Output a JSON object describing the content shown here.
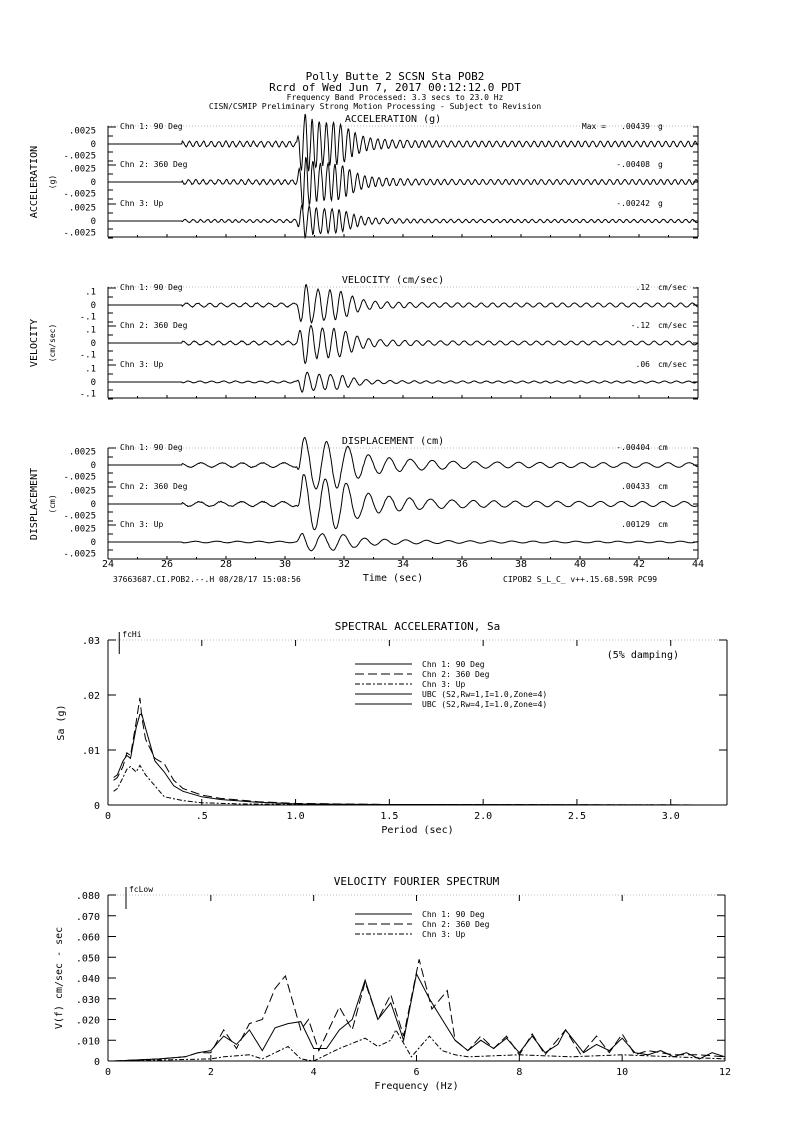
{
  "header": {
    "line1": "Polly Butte 2    SCSN Sta POB2",
    "line2": "Rcrd of Wed Jun  7, 2017 00:12:12.0 PDT",
    "line3": "Frequency Band Processed: 3.3 secs to 23.0 Hz",
    "line4": "CISN/CSMIP Preliminary Strong Motion Processing - Subject to Revision"
  },
  "footer": {
    "left": "37663687.CI.POB2.--.H 08/28/17 15:08:56",
    "right": "CIPOB2  S_L_C_  v++.15.68.59R PC99"
  },
  "chart_data": [
    {
      "type": "line",
      "title": "ACCELERATION (g)",
      "ylabel": "ACCELERATION",
      "yunit": "(g)",
      "xlabel": "Time (sec)",
      "xlim": [
        24,
        44
      ],
      "xticks": [
        "24",
        "26",
        "28",
        "30",
        "32",
        "34",
        "36",
        "38",
        "40",
        "42",
        "44"
      ],
      "ytick_labels": [
        ".0025",
        "0",
        "-.0025"
      ],
      "ylim": [
        -0.0025,
        0.0025
      ],
      "dominant_freq_hz": 4,
      "series": [
        {
          "name": "Chn 1: 90 Deg",
          "peak_prefix": "Max =",
          "peak": ".00439",
          "unit": "g",
          "peak_value": 0.00439
        },
        {
          "name": "Chn 2: 360 Deg",
          "peak_prefix": "",
          "peak": "-.00408",
          "unit": "g",
          "peak_value": -0.00408
        },
        {
          "name": "Chn 3: Up",
          "peak_prefix": "",
          "peak": "-.00242",
          "unit": "g",
          "peak_value": -0.00242
        }
      ]
    },
    {
      "type": "line",
      "title": "VELOCITY (cm/sec)",
      "ylabel": "VELOCITY",
      "yunit": "(cm/sec)",
      "xlim": [
        24,
        44
      ],
      "ytick_labels": [
        ".1",
        "0",
        "-.1"
      ],
      "ylim": [
        -0.1,
        0.1
      ],
      "dominant_freq_hz": 2.5,
      "series": [
        {
          "name": "Chn 1: 90 Deg",
          "peak_prefix": "",
          "peak": ".12",
          "unit": "cm/sec",
          "peak_value": 0.12
        },
        {
          "name": "Chn 2: 360 Deg",
          "peak_prefix": "",
          "peak": "-.12",
          "unit": "cm/sec",
          "peak_value": -0.12
        },
        {
          "name": "Chn 3: Up",
          "peak_prefix": "",
          "peak": ".06",
          "unit": "cm/sec",
          "peak_value": 0.06
        }
      ]
    },
    {
      "type": "line",
      "title": "DISPLACEMENT (cm)",
      "ylabel": "DISPLACEMENT",
      "yunit": "(cm)",
      "xlim": [
        24,
        44
      ],
      "ytick_labels": [
        ".0025",
        "0",
        "-.0025"
      ],
      "ylim": [
        -0.0025,
        0.0025
      ],
      "dominant_freq_hz": 1.4,
      "series": [
        {
          "name": "Chn 1: 90 Deg",
          "peak_prefix": "",
          "peak": "-.00404",
          "unit": "cm",
          "peak_value": -0.00404
        },
        {
          "name": "Chn 2: 360 Deg",
          "peak_prefix": "",
          "peak": ".00433",
          "unit": "cm",
          "peak_value": 0.00433
        },
        {
          "name": "Chn 3: Up",
          "peak_prefix": "",
          "peak": ".00129",
          "unit": "cm",
          "peak_value": 0.00129
        }
      ]
    },
    {
      "type": "line",
      "title": "SPECTRAL ACCELERATION, Sa",
      "xlabel": "Period (sec)",
      "ylabel": "Sa (g)",
      "annotation": "(5% damping)",
      "marker_label": "fcHi",
      "xlim": [
        0,
        3.3
      ],
      "ylim": [
        0,
        0.03
      ],
      "xticks": [
        {
          "v": 0,
          "l": "0"
        },
        {
          "v": 0.5,
          "l": ".5"
        },
        {
          "v": 1.0,
          "l": "1.0"
        },
        {
          "v": 1.5,
          "l": "1.5"
        },
        {
          "v": 2.0,
          "l": "2.0"
        },
        {
          "v": 2.5,
          "l": "2.5"
        },
        {
          "v": 3.0,
          "l": "3.0"
        }
      ],
      "yticks": [
        {
          "v": 0,
          "l": "0"
        },
        {
          "v": 0.01,
          "l": ".01"
        },
        {
          "v": 0.02,
          "l": ".02"
        },
        {
          "v": 0.03,
          "l": ".03"
        }
      ],
      "legend_position": "top-right",
      "series": [
        {
          "name": "Chn 1: 90 Deg",
          "dash": "solid",
          "x": [
            0.03,
            0.05,
            0.08,
            0.1,
            0.12,
            0.15,
            0.17,
            0.18,
            0.2,
            0.25,
            0.3,
            0.35,
            0.4,
            0.5,
            0.6,
            0.8,
            1.0,
            1.5,
            3.3
          ],
          "y": [
            0.005,
            0.0055,
            0.008,
            0.009,
            0.0085,
            0.014,
            0.0165,
            0.0165,
            0.014,
            0.008,
            0.006,
            0.0035,
            0.0025,
            0.0015,
            0.001,
            0.0005,
            0.0002,
            0.0001,
            0
          ]
        },
        {
          "name": "Chn 2: 360 Deg",
          "dash": "long-dash",
          "x": [
            0.03,
            0.05,
            0.08,
            0.1,
            0.12,
            0.15,
            0.17,
            0.18,
            0.2,
            0.25,
            0.3,
            0.35,
            0.4,
            0.5,
            0.6,
            0.8,
            1.0,
            1.5,
            3.3
          ],
          "y": [
            0.0045,
            0.005,
            0.007,
            0.0095,
            0.009,
            0.015,
            0.0195,
            0.016,
            0.012,
            0.0085,
            0.0075,
            0.0045,
            0.003,
            0.0018,
            0.0012,
            0.0006,
            0.0003,
            0.0001,
            0
          ]
        },
        {
          "name": "Chn 3: Up",
          "dash": "dash-dot",
          "x": [
            0.03,
            0.05,
            0.08,
            0.1,
            0.12,
            0.15,
            0.17,
            0.2,
            0.25,
            0.3,
            0.4,
            0.5,
            0.7,
            1.0,
            3.3
          ],
          "y": [
            0.0025,
            0.003,
            0.005,
            0.0065,
            0.007,
            0.006,
            0.0072,
            0.0055,
            0.0035,
            0.0015,
            0.0008,
            0.0004,
            0.0002,
            0.0001,
            0
          ]
        },
        {
          "name": "UBC (S2,Rw=1,I=1.0,Zone=4)",
          "dash": "solid-thick",
          "x": [],
          "y": []
        },
        {
          "name": "UBC (S2,Rw=4,I=1.0,Zone=4)",
          "dash": "solid-thick",
          "x": [],
          "y": []
        }
      ]
    },
    {
      "type": "line",
      "title": "VELOCITY FOURIER SPECTRUM",
      "xlabel": "Frequency (Hz)",
      "ylabel": "V(f)    cm/sec - sec",
      "marker_label": "fcLow",
      "xlim": [
        0,
        12
      ],
      "ylim": [
        0,
        0.08
      ],
      "xticks": [
        {
          "v": 0,
          "l": "0"
        },
        {
          "v": 2,
          "l": "2"
        },
        {
          "v": 4,
          "l": "4"
        },
        {
          "v": 6,
          "l": "6"
        },
        {
          "v": 8,
          "l": "8"
        },
        {
          "v": 10,
          "l": "10"
        },
        {
          "v": 12,
          "l": "12"
        }
      ],
      "yticks": [
        {
          "v": 0,
          "l": "0"
        },
        {
          "v": 0.01,
          "l": ".010"
        },
        {
          "v": 0.02,
          "l": ".020"
        },
        {
          "v": 0.03,
          "l": ".030"
        },
        {
          "v": 0.04,
          "l": ".040"
        },
        {
          "v": 0.05,
          "l": ".050"
        },
        {
          "v": 0.06,
          "l": ".060"
        },
        {
          "v": 0.07,
          "l": ".070"
        },
        {
          "v": 0.08,
          "l": ".080"
        }
      ],
      "legend_position": "top-center",
      "series": [
        {
          "name": "Chn 1: 90 Deg",
          "dash": "solid",
          "x": [
            0.1,
            1,
            1.5,
            1.75,
            2,
            2.25,
            2.5,
            2.75,
            3,
            3.25,
            3.5,
            3.75,
            4,
            4.25,
            4.5,
            4.75,
            5,
            5.25,
            5.5,
            5.75,
            6,
            6.25,
            6.5,
            6.75,
            7,
            7.25,
            7.5,
            7.75,
            8,
            8.25,
            8.5,
            8.75,
            8.9,
            9.25,
            9.5,
            9.75,
            10,
            10.25,
            10.5,
            10.75,
            11,
            11.25,
            11.5,
            11.75,
            12
          ],
          "y": [
            0,
            0.001,
            0.002,
            0.004,
            0.005,
            0.012,
            0.008,
            0.015,
            0.005,
            0.016,
            0.018,
            0.019,
            0.006,
            0.006,
            0.015,
            0.02,
            0.039,
            0.02,
            0.028,
            0.01,
            0.042,
            0.03,
            0.02,
            0.01,
            0.005,
            0.01,
            0.006,
            0.011,
            0.004,
            0.012,
            0.004,
            0.008,
            0.015,
            0.004,
            0.008,
            0.005,
            0.011,
            0.004,
            0.003,
            0.005,
            0.002,
            0.004,
            0.001,
            0.004,
            0.002
          ]
        },
        {
          "name": "Chn 2: 360 Deg",
          "dash": "long-dash",
          "x": [
            0.1,
            1,
            1.5,
            1.75,
            2,
            2.25,
            2.5,
            2.75,
            3,
            3.25,
            3.45,
            3.75,
            3.9,
            4.1,
            4.5,
            4.75,
            5,
            5.25,
            5.5,
            5.75,
            6.05,
            6.3,
            6.6,
            6.75,
            7,
            7.25,
            7.5,
            7.75,
            8,
            8.25,
            8.5,
            8.9,
            9.2,
            9.5,
            9.75,
            10,
            10.25,
            10.5,
            11,
            11.5,
            12
          ],
          "y": [
            0,
            0.001,
            0.002,
            0.004,
            0.004,
            0.015,
            0.006,
            0.018,
            0.02,
            0.035,
            0.041,
            0.015,
            0.02,
            0.005,
            0.026,
            0.015,
            0.038,
            0.02,
            0.032,
            0.012,
            0.049,
            0.025,
            0.034,
            0.01,
            0.005,
            0.012,
            0.006,
            0.012,
            0.003,
            0.013,
            0.003,
            0.015,
            0.003,
            0.012,
            0.004,
            0.013,
            0.003,
            0.005,
            0.003,
            0.003,
            0.002
          ]
        },
        {
          "name": "Chn 3: Up",
          "dash": "dash-dot",
          "x": [
            0.1,
            1,
            2,
            2.25,
            2.75,
            3,
            3.5,
            3.75,
            4,
            4.5,
            5,
            5.25,
            5.5,
            5.6,
            5.9,
            6.25,
            6.5,
            6.75,
            7,
            8,
            9,
            10,
            11,
            12
          ],
          "y": [
            0,
            0.0005,
            0.001,
            0.002,
            0.003,
            0.001,
            0.007,
            0.001,
            0,
            0.006,
            0.011,
            0.007,
            0.01,
            0.015,
            0.002,
            0.012,
            0.005,
            0.003,
            0.002,
            0.003,
            0.002,
            0.003,
            0.002,
            0.001
          ]
        }
      ]
    }
  ]
}
